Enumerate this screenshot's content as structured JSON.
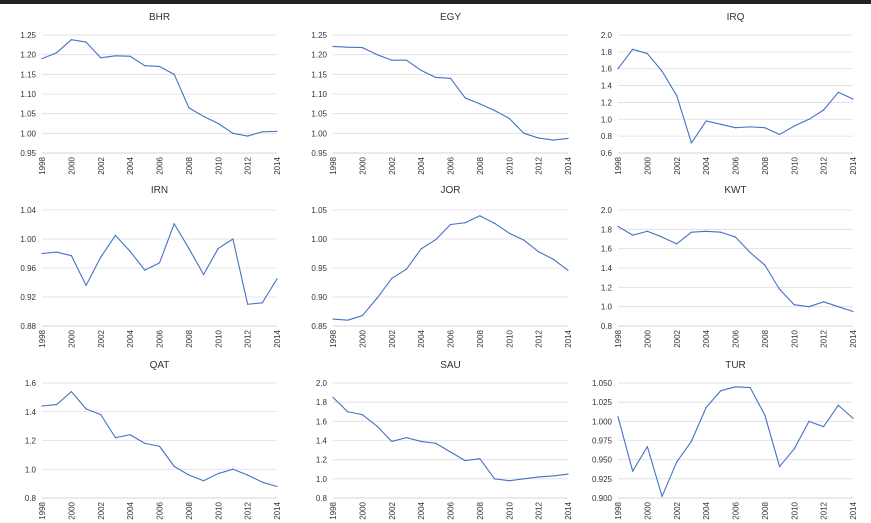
{
  "figure": {
    "line_color": "#4472C4",
    "grid_color": "#dedede"
  },
  "chart_data": [
    {
      "type": "line",
      "title": "BHR",
      "x": [
        1998,
        1999,
        2000,
        2001,
        2002,
        2003,
        2004,
        2005,
        2006,
        2007,
        2008,
        2009,
        2010,
        2011,
        2012,
        2013,
        2014
      ],
      "series": [
        {
          "values": [
            1.19,
            1.205,
            1.238,
            1.232,
            1.192,
            1.197,
            1.196,
            1.172,
            1.17,
            1.15,
            1.065,
            1.043,
            1.025,
            1.0,
            0.993,
            1.004,
            1.005
          ]
        }
      ],
      "ylim": [
        0.95,
        1.25
      ],
      "yticks": [
        "0.95",
        "1.00",
        "1.05",
        "1.10",
        "1.15",
        "1.20",
        "1.25"
      ],
      "xticks": [
        "1998",
        "2000",
        "2002",
        "2004",
        "2006",
        "2008",
        "2010",
        "2012",
        "2014"
      ],
      "grid": true
    },
    {
      "type": "line",
      "title": "EGY",
      "x": [
        1998,
        1999,
        2000,
        2001,
        2002,
        2003,
        2004,
        2005,
        2006,
        2007,
        2008,
        2009,
        2010,
        2011,
        2012,
        2013,
        2014
      ],
      "series": [
        {
          "values": [
            1.221,
            1.219,
            1.218,
            1.2,
            1.186,
            1.186,
            1.16,
            1.142,
            1.14,
            1.09,
            1.075,
            1.058,
            1.038,
            1.0,
            0.988,
            0.983,
            0.987
          ]
        }
      ],
      "ylim": [
        0.95,
        1.25
      ],
      "yticks": [
        "0.95",
        "1.00",
        "1.05",
        "1.10",
        "1.15",
        "1.20",
        "1.25"
      ],
      "xticks": [
        "1998",
        "2000",
        "2002",
        "2004",
        "2006",
        "2008",
        "2010",
        "2012",
        "2014"
      ],
      "grid": true
    },
    {
      "type": "line",
      "title": "IRQ",
      "x": [
        1998,
        1999,
        2000,
        2001,
        2002,
        2003,
        2004,
        2005,
        2006,
        2007,
        2008,
        2009,
        2010,
        2011,
        2012,
        2013,
        2014
      ],
      "series": [
        {
          "values": [
            1.6,
            1.83,
            1.78,
            1.57,
            1.28,
            0.72,
            0.98,
            0.94,
            0.9,
            0.91,
            0.9,
            0.82,
            0.92,
            1.0,
            1.11,
            1.32,
            1.24
          ]
        }
      ],
      "ylim": [
        0.6,
        2.0
      ],
      "yticks": [
        "0.6",
        "0.8",
        "1.0",
        "1.2",
        "1.4",
        "1.6",
        "1.8",
        "2.0"
      ],
      "xticks": [
        "1998",
        "2000",
        "2002",
        "2004",
        "2006",
        "2008",
        "2010",
        "2012",
        "2014"
      ],
      "grid": true
    },
    {
      "type": "line",
      "title": "IRN",
      "x": [
        1998,
        1999,
        2000,
        2001,
        2002,
        2003,
        2004,
        2005,
        2006,
        2007,
        2008,
        2009,
        2010,
        2011,
        2012,
        2013,
        2014
      ],
      "series": [
        {
          "values": [
            0.98,
            0.982,
            0.977,
            0.936,
            0.975,
            1.005,
            0.983,
            0.957,
            0.967,
            1.021,
            0.987,
            0.951,
            0.987,
            1.0,
            0.91,
            0.912,
            0.945
          ]
        }
      ],
      "ylim": [
        0.88,
        1.04
      ],
      "yticks": [
        "0.88",
        "0.92",
        "0.96",
        "1.00",
        "1.04"
      ],
      "xticks": [
        "1998",
        "2000",
        "2002",
        "2004",
        "2006",
        "2008",
        "2010",
        "2012",
        "2014"
      ],
      "grid": true
    },
    {
      "type": "line",
      "title": "JOR",
      "x": [
        1998,
        1999,
        2000,
        2001,
        2002,
        2003,
        2004,
        2005,
        2006,
        2007,
        2008,
        2009,
        2010,
        2011,
        2012,
        2013,
        2014
      ],
      "series": [
        {
          "values": [
            0.862,
            0.86,
            0.868,
            0.898,
            0.932,
            0.948,
            0.983,
            0.999,
            1.025,
            1.028,
            1.04,
            1.027,
            1.01,
            0.998,
            0.978,
            0.965,
            0.946
          ]
        }
      ],
      "ylim": [
        0.85,
        1.05
      ],
      "yticks": [
        "0.85",
        "0.90",
        "0.95",
        "1.00",
        "1.05"
      ],
      "xticks": [
        "1998",
        "2000",
        "2002",
        "2004",
        "2006",
        "2008",
        "2010",
        "2012",
        "2014"
      ],
      "grid": true
    },
    {
      "type": "line",
      "title": "KWT",
      "x": [
        1998,
        1999,
        2000,
        2001,
        2002,
        2003,
        2004,
        2005,
        2006,
        2007,
        2008,
        2009,
        2010,
        2011,
        2012,
        2013,
        2014
      ],
      "series": [
        {
          "values": [
            1.83,
            1.74,
            1.78,
            1.72,
            1.65,
            1.77,
            1.78,
            1.77,
            1.72,
            1.56,
            1.43,
            1.18,
            1.02,
            1.0,
            1.05,
            1.0,
            0.95
          ]
        }
      ],
      "ylim": [
        0.8,
        2.0
      ],
      "yticks": [
        "0.8",
        "1.0",
        "1.2",
        "1.4",
        "1.6",
        "1.8",
        "2.0"
      ],
      "xticks": [
        "1998",
        "2000",
        "2002",
        "2004",
        "2006",
        "2008",
        "2010",
        "2012",
        "2014"
      ],
      "grid": true
    },
    {
      "type": "line",
      "title": "QAT",
      "x": [
        1998,
        1999,
        2000,
        2001,
        2002,
        2003,
        2004,
        2005,
        2006,
        2007,
        2008,
        2009,
        2010,
        2011,
        2012,
        2013,
        2014
      ],
      "series": [
        {
          "values": [
            1.44,
            1.45,
            1.54,
            1.42,
            1.38,
            1.22,
            1.24,
            1.18,
            1.16,
            1.02,
            0.96,
            0.92,
            0.97,
            1.0,
            0.96,
            0.91,
            0.88
          ]
        }
      ],
      "ylim": [
        0.8,
        1.6
      ],
      "yticks": [
        "0.8",
        "1.0",
        "1.2",
        "1.4",
        "1.6"
      ],
      "xticks": [
        "1998",
        "2000",
        "2002",
        "2004",
        "2006",
        "2008",
        "2010",
        "2012",
        "2014"
      ],
      "grid": true
    },
    {
      "type": "line",
      "title": "SAU",
      "x": [
        1998,
        1999,
        2000,
        2001,
        2002,
        2003,
        2004,
        2005,
        2006,
        2007,
        2008,
        2009,
        2010,
        2011,
        2012,
        2013,
        2014
      ],
      "series": [
        {
          "values": [
            1.85,
            1.7,
            1.67,
            1.55,
            1.39,
            1.43,
            1.39,
            1.37,
            1.28,
            1.19,
            1.21,
            1.0,
            0.98,
            1.0,
            1.02,
            1.03,
            1.05
          ]
        }
      ],
      "ylim": [
        0.8,
        2.0
      ],
      "yticks": [
        "0.8",
        "1.0",
        "1.2",
        "1.4",
        "1.6",
        "1.8",
        "2.0"
      ],
      "xticks": [
        "1998",
        "2000",
        "2002",
        "2004",
        "2006",
        "2008",
        "2010",
        "2012",
        "2014"
      ],
      "grid": true
    },
    {
      "type": "line",
      "title": "TUR",
      "x": [
        1998,
        1999,
        2000,
        2001,
        2002,
        2003,
        2004,
        2005,
        2006,
        2007,
        2008,
        2009,
        2010,
        2011,
        2012,
        2013,
        2014
      ],
      "series": [
        {
          "values": [
            1.006,
            0.935,
            0.967,
            0.902,
            0.947,
            0.974,
            1.018,
            1.04,
            1.045,
            1.044,
            1.008,
            0.941,
            0.964,
            1.0,
            0.993,
            1.021,
            1.004
          ]
        }
      ],
      "ylim": [
        0.9,
        1.05
      ],
      "yticks": [
        "0.900",
        "0.925",
        "0.950",
        "0.975",
        "1.000",
        "1.025",
        "1.050"
      ],
      "xticks": [
        "1998",
        "2000",
        "2002",
        "2004",
        "2006",
        "2008",
        "2010",
        "2012",
        "2014"
      ],
      "grid": true
    }
  ]
}
